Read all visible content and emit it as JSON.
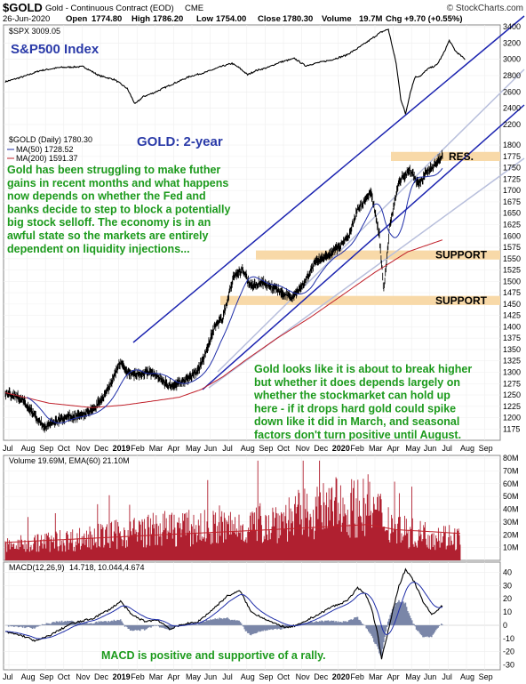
{
  "header": {
    "symbol": "$GOLD",
    "description": "Gold - Continuous Contract (EOD)",
    "exchange": "CME",
    "brand": "© StockCharts.com",
    "date": "26-Jun-2020",
    "open_label": "Open",
    "open_value": "1774.80",
    "high_label": "High",
    "high_value": "1786.20",
    "low_label": "Low",
    "low_value": "1754.00",
    "close_label": "Close",
    "close_value": "1780.30",
    "volume_label": "Volume",
    "volume_value": "19.7M",
    "chg_label": "Chg",
    "chg_value": "+9.70 (+0.55%)"
  },
  "colors": {
    "spx_line": "#000000",
    "ma50": "#1f2ea8",
    "ma200": "#c0202a",
    "channel": "#1c24b0",
    "channel_light": "#b8bfdc",
    "support_band": "#f8d9a8",
    "annotation": "#1c9a1c",
    "title_blue": "#2a3aa8",
    "volume_bar": "#b02030",
    "macd_hist": "#7a86a8"
  },
  "chart_data": [
    {
      "type": "line",
      "panel": "spx",
      "legend": "$SPX 3009.05",
      "title": "S&P500 Index",
      "ylim": [
        2200,
        3400
      ],
      "yticks": [
        "3400",
        "3200",
        "3000",
        "2800",
        "2600",
        "2400",
        "2200"
      ],
      "points": [
        [
          0,
          2725
        ],
        [
          12,
          2790
        ],
        [
          22,
          2860
        ],
        [
          35,
          2900
        ],
        [
          50,
          2910
        ],
        [
          60,
          2800
        ],
        [
          70,
          2750
        ],
        [
          78,
          2640
        ],
        [
          83,
          2450
        ],
        [
          88,
          2540
        ],
        [
          95,
          2590
        ],
        [
          105,
          2680
        ],
        [
          118,
          2790
        ],
        [
          128,
          2840
        ],
        [
          138,
          2910
        ],
        [
          145,
          2950
        ],
        [
          150,
          2890
        ],
        [
          155,
          2810
        ],
        [
          160,
          2860
        ],
        [
          168,
          2900
        ],
        [
          175,
          2960
        ],
        [
          185,
          3010
        ],
        [
          192,
          2920
        ],
        [
          198,
          2950
        ],
        [
          208,
          2990
        ],
        [
          218,
          3050
        ],
        [
          225,
          3130
        ],
        [
          232,
          3220
        ],
        [
          240,
          3330
        ],
        [
          245,
          3370
        ],
        [
          250,
          2950
        ],
        [
          253,
          2510
        ],
        [
          256,
          2330
        ],
        [
          259,
          2590
        ],
        [
          262,
          2780
        ],
        [
          266,
          2800
        ],
        [
          270,
          2880
        ],
        [
          276,
          2930
        ],
        [
          280,
          3060
        ],
        [
          284,
          3230
        ],
        [
          288,
          3100
        ],
        [
          294,
          3000
        ]
      ]
    },
    {
      "type": "ohlc",
      "panel": "gold",
      "legend": "$GOLD (Daily) 1780.30",
      "ma50_legend": "MA(50) 1728.52",
      "ma200_legend": "MA(200) 1591.37",
      "title": "GOLD: 2-year",
      "ylim": [
        1160,
        1810
      ],
      "yticks": [
        "1800",
        "1775",
        "1750",
        "1725",
        "1700",
        "1675",
        "1650",
        "1625",
        "1600",
        "1575",
        "1550",
        "1525",
        "1500",
        "1475",
        "1450",
        "1425",
        "1400",
        "1375",
        "1350",
        "1325",
        "1300",
        "1275",
        "1250",
        "1225",
        "1200",
        "1175"
      ],
      "close_anchors": [
        [
          0,
          1255
        ],
        [
          8,
          1240
        ],
        [
          14,
          1200
        ],
        [
          18,
          1180
        ],
        [
          26,
          1200
        ],
        [
          34,
          1205
        ],
        [
          40,
          1215
        ],
        [
          45,
          1245
        ],
        [
          50,
          1290
        ],
        [
          53,
          1325
        ],
        [
          56,
          1300
        ],
        [
          60,
          1295
        ],
        [
          68,
          1300
        ],
        [
          75,
          1270
        ],
        [
          82,
          1280
        ],
        [
          88,
          1300
        ],
        [
          92,
          1340
        ],
        [
          96,
          1400
        ],
        [
          100,
          1420
        ],
        [
          105,
          1510
        ],
        [
          109,
          1525
        ],
        [
          113,
          1490
        ],
        [
          118,
          1500
        ],
        [
          125,
          1480
        ],
        [
          132,
          1465
        ],
        [
          138,
          1500
        ],
        [
          142,
          1540
        ],
        [
          148,
          1555
        ],
        [
          153,
          1575
        ],
        [
          158,
          1600
        ],
        [
          162,
          1660
        ],
        [
          166,
          1680
        ],
        [
          168,
          1700
        ],
        [
          172,
          1600
        ],
        [
          174,
          1480
        ],
        [
          177,
          1630
        ],
        [
          181,
          1720
        ],
        [
          186,
          1745
        ],
        [
          190,
          1715
        ],
        [
          194,
          1740
        ],
        [
          198,
          1760
        ],
        [
          200,
          1770
        ],
        [
          201,
          1780.3
        ]
      ],
      "bands": [
        {
          "label": "RES.",
          "lo": 1765,
          "hi": 1785
        },
        {
          "label": "SUPPORT",
          "lo": 1548,
          "hi": 1568
        },
        {
          "label": "SUPPORT",
          "lo": 1448,
          "hi": 1468
        }
      ],
      "notes": [
        [
          "Gold has been struggling to make futher",
          "gains in recent months and what happens",
          "now depends on whether the Fed and",
          "banks decide to step to block a potentially",
          "big stock selloff. The economy is in an",
          "awful state so the markets are entirely",
          "dependent on liquidity injections..."
        ],
        [
          "Gold looks like it is about to break higher",
          "but whether it does depends largely on",
          "whether the stockmarket can hold up",
          "here - if it drops hard gold could spike",
          "down like it did in March, and seasonal",
          "factors don't turn positive until August."
        ]
      ]
    },
    {
      "type": "bar",
      "panel": "volume",
      "legend": "Volume 19.69M, EMA(60) 21.10M",
      "ylim": [
        0,
        80
      ],
      "yticks": [
        "80M",
        "70M",
        "60M",
        "50M",
        "40M",
        "30M",
        "20M",
        "10M"
      ],
      "anchors": [
        [
          0,
          12
        ],
        [
          50,
          18
        ],
        [
          100,
          26
        ],
        [
          150,
          27
        ],
        [
          200,
          40
        ],
        [
          232,
          45
        ],
        [
          250,
          28
        ],
        [
          260,
          22
        ],
        [
          291,
          19
        ]
      ],
      "ema_anchors": [
        [
          0,
          14
        ],
        [
          100,
          20
        ],
        [
          170,
          24
        ],
        [
          232,
          28
        ],
        [
          250,
          24
        ],
        [
          291,
          21.1
        ]
      ]
    },
    {
      "type": "line",
      "panel": "macd",
      "legend_label": "MACD(12,26,9)",
      "legend_values": [
        "14.718,",
        "10.044,",
        "4.674"
      ],
      "ylim": [
        -33,
        45
      ],
      "yticks": [
        "40",
        "30",
        "20",
        "10",
        "0",
        "-10",
        "-20",
        "-30"
      ],
      "macd_anchors": [
        [
          0,
          -5
        ],
        [
          8,
          -8
        ],
        [
          14,
          -12
        ],
        [
          20,
          -8
        ],
        [
          30,
          1
        ],
        [
          40,
          5
        ],
        [
          48,
          12
        ],
        [
          53,
          18
        ],
        [
          58,
          8
        ],
        [
          64,
          3
        ],
        [
          70,
          4
        ],
        [
          76,
          -3
        ],
        [
          82,
          1
        ],
        [
          88,
          2
        ],
        [
          94,
          10
        ],
        [
          98,
          16
        ],
        [
          102,
          22
        ],
        [
          108,
          26
        ],
        [
          113,
          10
        ],
        [
          118,
          6
        ],
        [
          124,
          1
        ],
        [
          130,
          -2
        ],
        [
          136,
          1
        ],
        [
          140,
          5
        ],
        [
          145,
          9
        ],
        [
          150,
          14
        ],
        [
          154,
          16
        ],
        [
          158,
          20
        ],
        [
          162,
          28
        ],
        [
          165,
          25
        ],
        [
          168,
          15
        ],
        [
          171,
          -5
        ],
        [
          173,
          -25
        ],
        [
          175,
          -12
        ],
        [
          178,
          10
        ],
        [
          181,
          30
        ],
        [
          184,
          42
        ],
        [
          188,
          33
        ],
        [
          192,
          18
        ],
        [
          196,
          8
        ],
        [
          199,
          12
        ],
        [
          201,
          14.718
        ]
      ],
      "note": "MACD is positive and supportive of a rally."
    }
  ],
  "x_axis": {
    "months": [
      "Jul",
      "Aug",
      "Sep",
      "Oct",
      "Nov",
      "Dec",
      "2019",
      "Feb",
      "Mar",
      "Apr",
      "May",
      "Jun",
      "Jul",
      "Aug",
      "Sep",
      "Oct",
      "Nov",
      "Dec",
      "2020",
      "Feb",
      "Mar",
      "Apr",
      "May",
      "Jun",
      "Jul",
      "Aug",
      "Sep"
    ]
  }
}
